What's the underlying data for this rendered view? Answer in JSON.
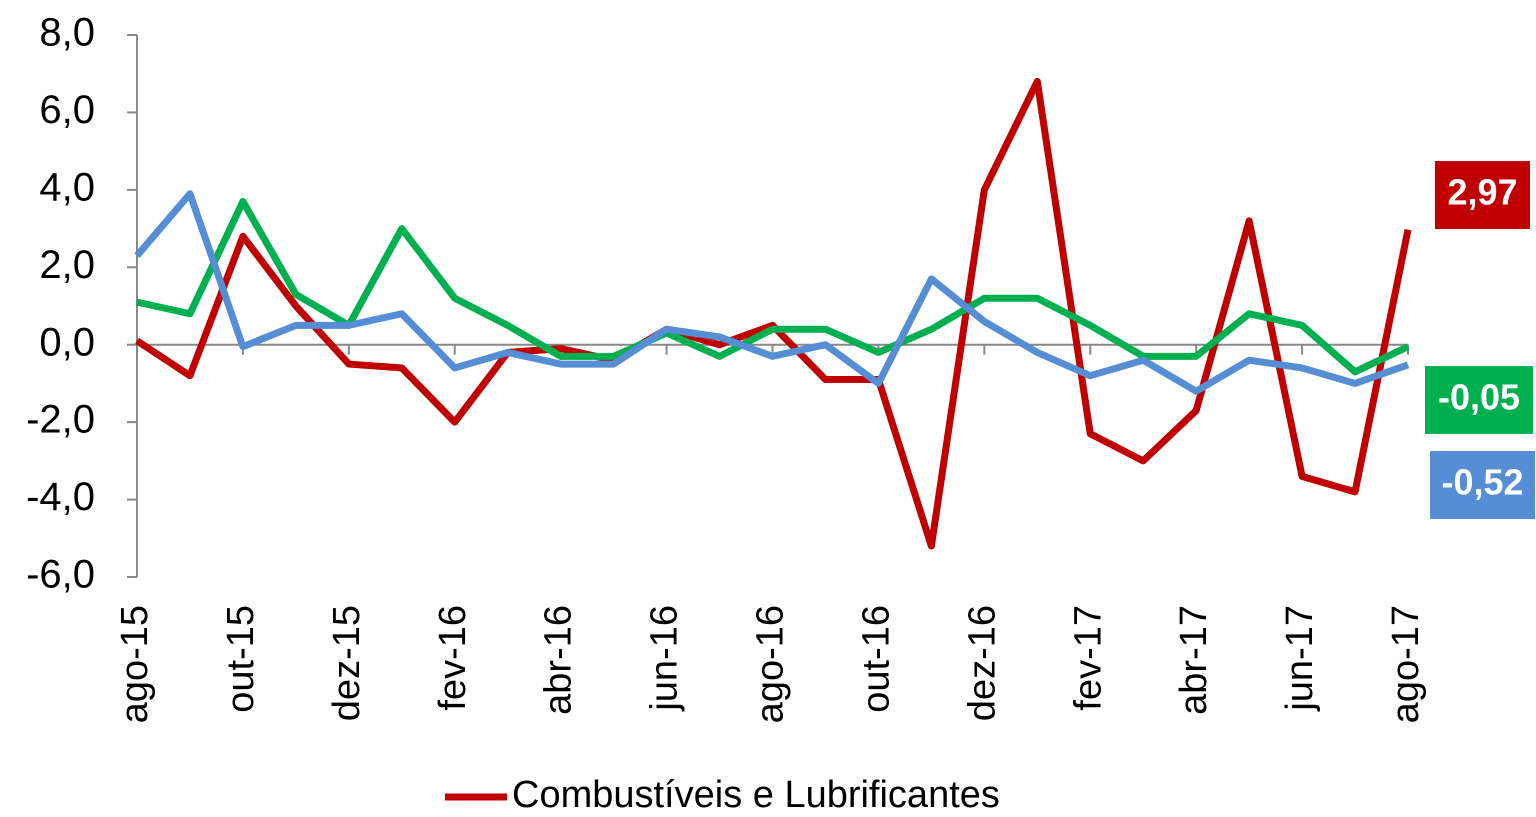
{
  "chart_data": {
    "type": "line",
    "categories": [
      "ago-15",
      null,
      "out-15",
      null,
      "dez-15",
      null,
      "fev-16",
      null,
      "abr-16",
      null,
      "jun-16",
      null,
      "ago-16",
      null,
      "out-16",
      null,
      "dez-16",
      null,
      "fev-17",
      null,
      "abr-17",
      null,
      "jun-17",
      null,
      "ago-17"
    ],
    "series": [
      {
        "name": "Combustíveis e Lubrificantes",
        "color": "#c00000",
        "values": [
          0.1,
          -0.8,
          2.8,
          1.0,
          -0.5,
          -0.6,
          -2.0,
          -0.2,
          -0.1,
          -0.4,
          0.4,
          0.0,
          0.5,
          -0.9,
          -0.9,
          -5.2,
          4.0,
          6.8,
          -2.3,
          -3.0,
          -1.7,
          3.2,
          -3.4,
          -3.8,
          2.97
        ],
        "value_labels": [
          null,
          null,
          null,
          null,
          null,
          null,
          null,
          null,
          null,
          null,
          null,
          null,
          null,
          null,
          null,
          null,
          null,
          null,
          null,
          null,
          null,
          null,
          null,
          null,
          "2,97"
        ]
      },
      {
        "color": "#00b050",
        "values": [
          1.1,
          0.8,
          3.7,
          1.3,
          0.5,
          3.0,
          1.2,
          0.5,
          -0.3,
          -0.3,
          0.3,
          -0.3,
          0.4,
          0.4,
          -0.2,
          0.4,
          1.2,
          1.2,
          0.5,
          -0.3,
          -0.3,
          0.8,
          0.5,
          -0.7,
          -0.05
        ],
        "value_labels": [
          null,
          null,
          null,
          null,
          null,
          null,
          null,
          null,
          null,
          null,
          null,
          null,
          null,
          null,
          null,
          null,
          null,
          null,
          null,
          null,
          null,
          null,
          null,
          null,
          "-0,05"
        ]
      },
      {
        "color": "#558ed5",
        "values": [
          2.3,
          3.9,
          -0.05,
          0.5,
          0.5,
          0.8,
          -0.6,
          -0.2,
          -0.5,
          -0.5,
          0.4,
          0.2,
          -0.3,
          0.0,
          -1.0,
          1.7,
          0.6,
          -0.2,
          -0.8,
          -0.4,
          -1.2,
          -0.4,
          -0.6,
          -1.0,
          -0.52
        ],
        "value_labels": [
          null,
          null,
          null,
          null,
          null,
          null,
          null,
          null,
          null,
          null,
          null,
          null,
          null,
          null,
          null,
          null,
          null,
          null,
          null,
          null,
          null,
          null,
          null,
          null,
          "-0,52"
        ]
      }
    ],
    "ylim": [
      -6,
      8
    ],
    "yticks": [
      {
        "value": -6,
        "label": "-6,0"
      },
      {
        "value": -4,
        "label": "-4,0"
      },
      {
        "value": -2,
        "label": "-2,0"
      },
      {
        "value": 0,
        "label": "0,0"
      },
      {
        "value": 2,
        "label": "2,0"
      },
      {
        "value": 4,
        "label": "4,0"
      },
      {
        "value": 6,
        "label": "6,0"
      },
      {
        "value": 8,
        "label": "8,0"
      }
    ],
    "grid": false
  }
}
